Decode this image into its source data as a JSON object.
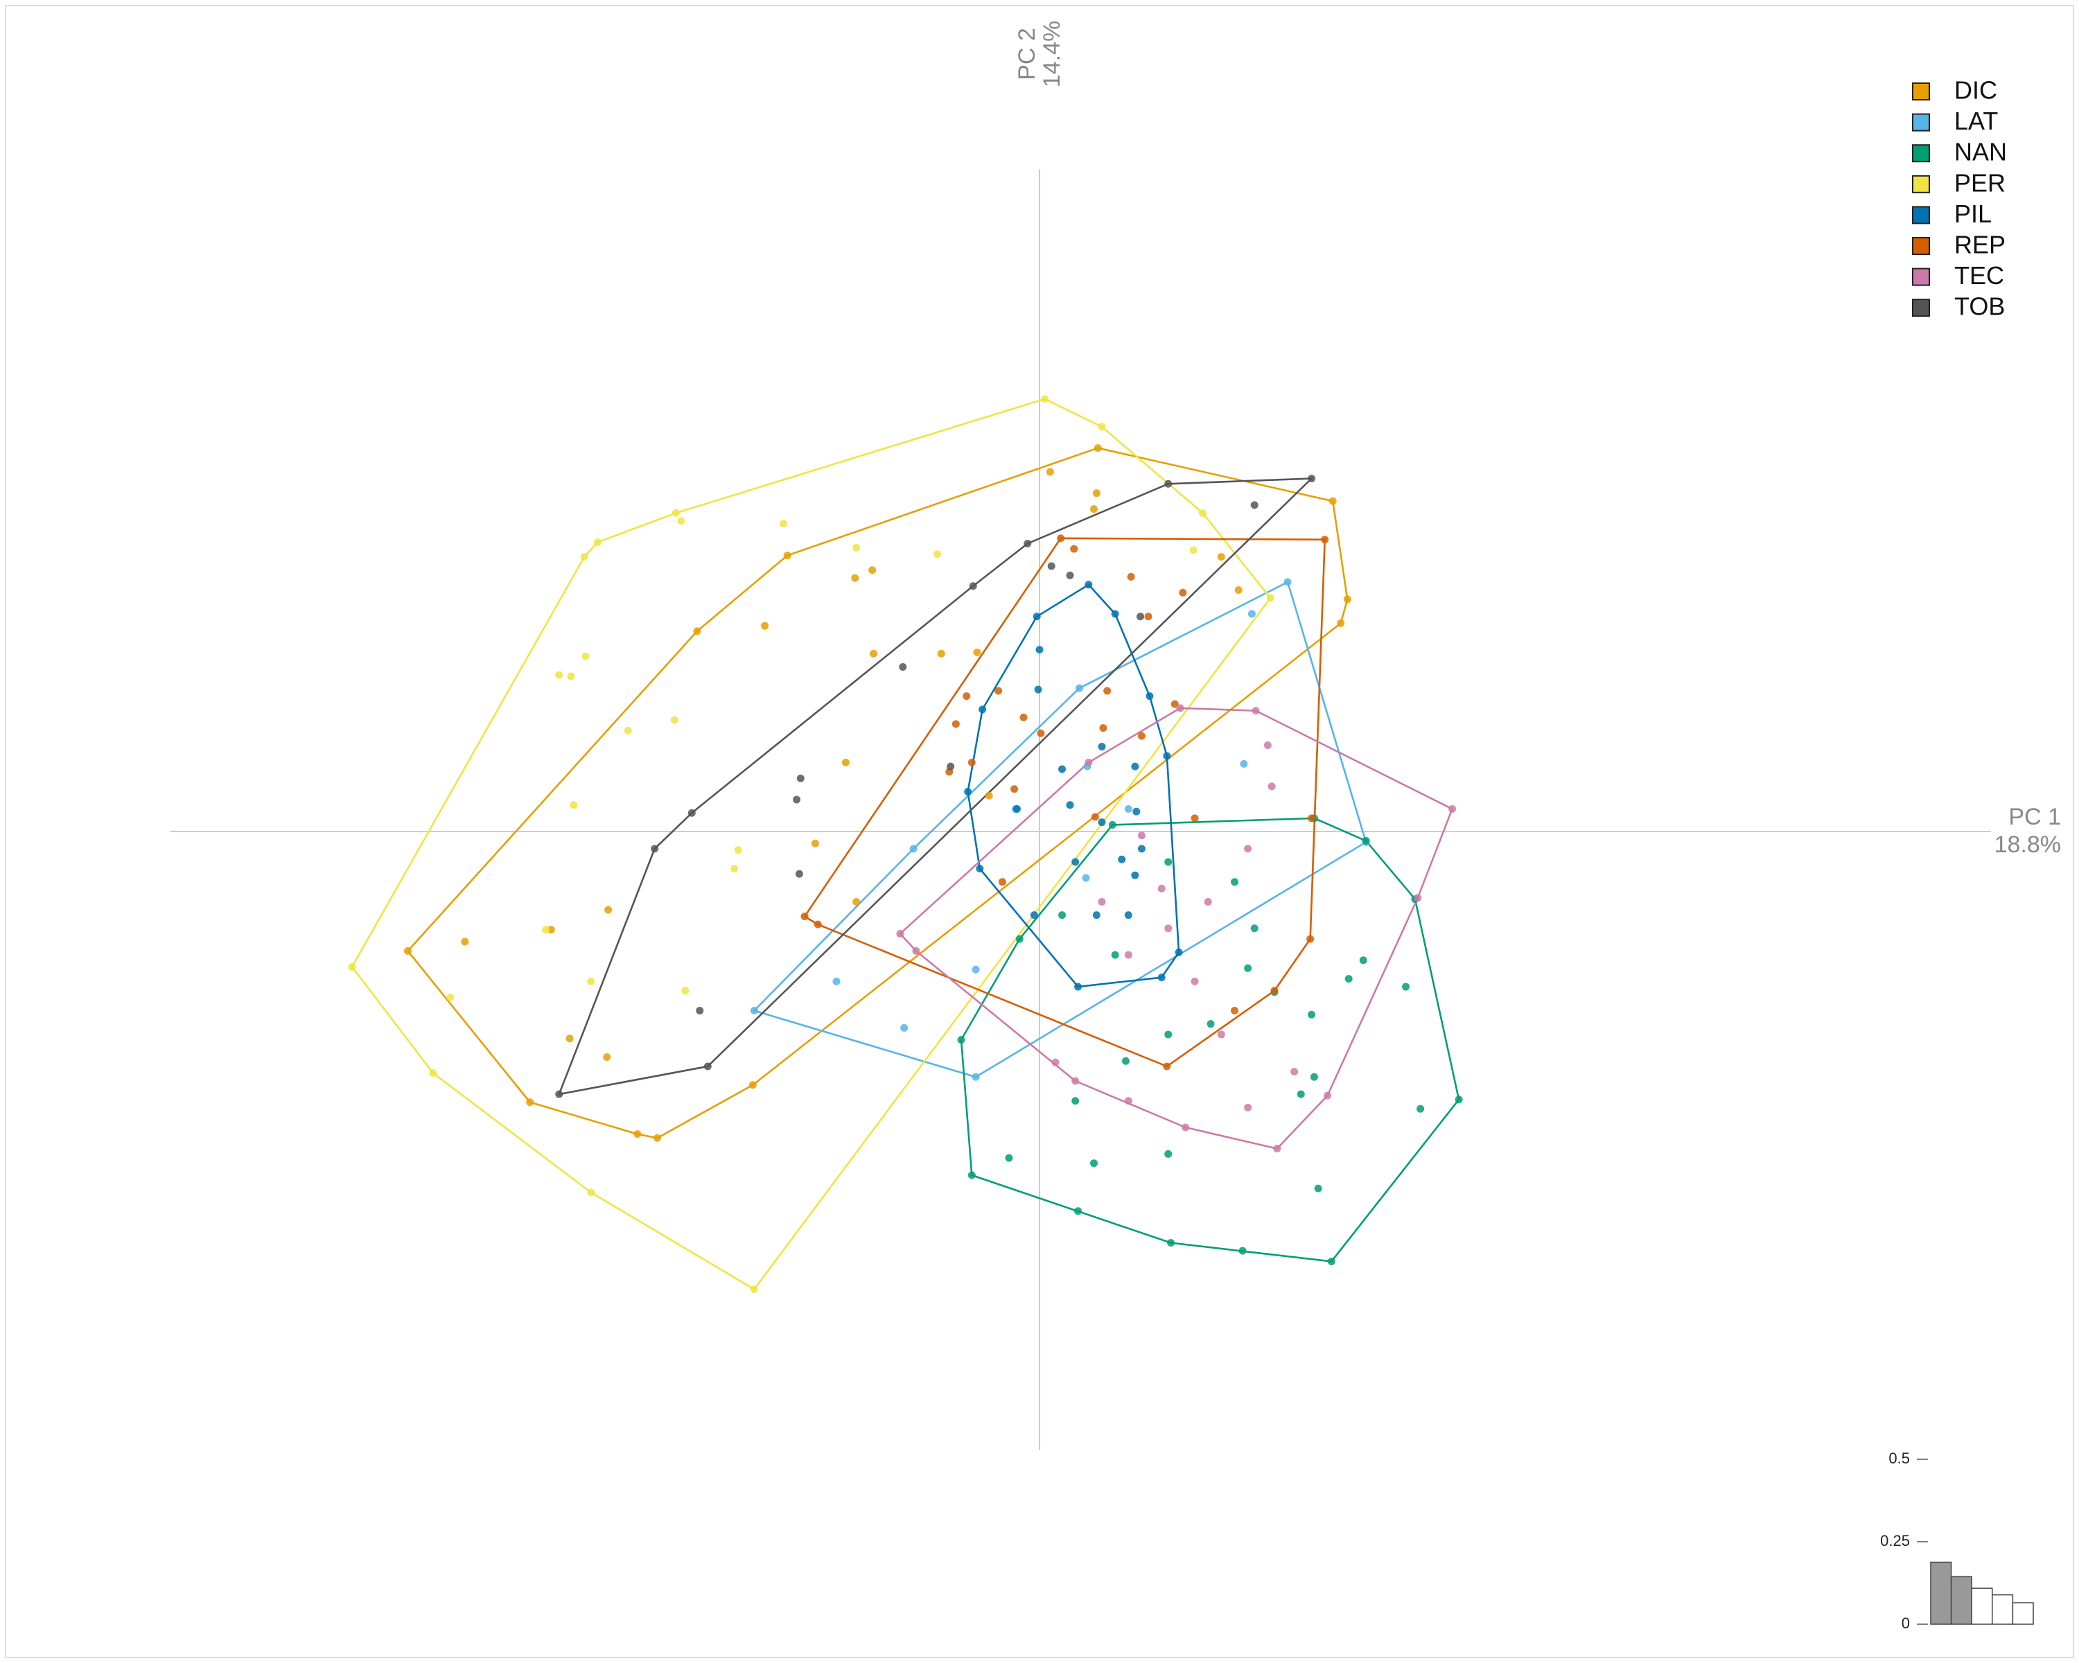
{
  "chart_data": [
    {
      "type": "scatter",
      "xlabel": "PC 1",
      "xlabel_pct": "18.8%",
      "ylabel": "PC 2",
      "ylabel_pct": "14.4%",
      "xlim": [
        -6.55,
        7.17
      ],
      "ylim": [
        -4.66,
        4.99
      ],
      "legend": "top-right",
      "hulls": true,
      "series": [
        {
          "name": "DIC",
          "color": "#e69f00",
          "x": [
            0.08,
            2.21,
            2.32,
            2.27,
            -2.16,
            -3.03,
            -3.84,
            -4.76,
            -2.58,
            -1.9,
            0.44,
            0.43,
            0.41,
            -1.26,
            -1.39,
            -2.07,
            -1.25,
            -0.74,
            -0.47,
            -1.46,
            -1.69,
            -1.38,
            -3.25,
            -3.68,
            -4.33,
            -3.54,
            -3.26,
            -2.88,
            1.5,
            1.37,
            -0.38
          ],
          "y": [
            2.71,
            2.49,
            1.75,
            1.57,
            -1.91,
            -2.28,
            -2.04,
            -0.9,
            1.51,
            2.08,
            2.89,
            2.55,
            2.43,
            1.97,
            1.91,
            1.55,
            1.34,
            1.34,
            1.35,
            0.52,
            -0.09,
            -0.53,
            -0.59,
            -0.74,
            -0.83,
            -1.56,
            -1.7,
            -2.31,
            1.82,
            2.07,
            0.27
          ]
        },
        {
          "name": "LAT",
          "color": "#56b4e9",
          "x": [
            1.87,
            2.46,
            -0.48,
            -2.15,
            0.3,
            1.6,
            1.54,
            -0.95,
            -1.53,
            -1.02,
            -0.48,
            0.36,
            0.35,
            -0.18,
            0.67
          ],
          "y": [
            1.88,
            -0.08,
            -1.85,
            -1.35,
            1.08,
            1.64,
            0.51,
            -0.13,
            -1.13,
            -1.48,
            -1.04,
            0.49,
            -0.35,
            0.17,
            0.17
          ]
        },
        {
          "name": "NAN",
          "color": "#009e73",
          "x": [
            0.55,
            2.07,
            2.46,
            2.83,
            3.16,
            2.2,
            1.53,
            0.99,
            0.29,
            -0.51,
            -0.59,
            -0.15,
            1.47,
            1.62,
            2.44,
            2.76,
            2.33,
            2.05,
            2.07,
            1.97,
            2.87,
            2.1,
            1.77,
            1.29,
            0.97,
            0.65,
            0.97,
            0.41,
            -0.23,
            0.57,
            0.97,
            0.17,
            0.27,
            1.57
          ],
          "y": [
            0.05,
            0.1,
            -0.07,
            -0.51,
            -2.02,
            -3.24,
            -3.16,
            -3.1,
            -2.86,
            -2.59,
            -1.57,
            -0.81,
            -0.38,
            -0.73,
            -0.97,
            -1.17,
            -1.11,
            -1.38,
            -1.85,
            -1.98,
            -2.09,
            -2.69,
            -1.21,
            -1.45,
            -1.53,
            -1.73,
            -2.43,
            -2.5,
            -2.46,
            -0.93,
            -0.23,
            -0.63,
            -2.03,
            -1.03
          ]
        },
        {
          "name": "PER",
          "color": "#f0e442",
          "x": [
            0.04,
            0.47,
            1.74,
            -2.15,
            -3.38,
            -4.57,
            -5.18,
            -3.43,
            -3.33,
            -2.74,
            -1.93,
            -2.7,
            -3.42,
            -3.62,
            -3.53,
            -2.75,
            -3.1,
            -3.51,
            -2.27,
            -2.3,
            -3.72,
            -3.38,
            -2.67,
            -4.44,
            1.23,
            1.16,
            -1.38,
            -0.77
          ],
          "y": [
            3.26,
            3.05,
            1.76,
            -3.45,
            -2.72,
            -1.82,
            -1.02,
            2.07,
            2.18,
            2.4,
            2.32,
            2.34,
            1.32,
            1.18,
            1.17,
            0.84,
            0.76,
            0.2,
            -0.14,
            -0.28,
            -0.74,
            -1.13,
            -1.2,
            -1.25,
            2.4,
            2.12,
            2.14,
            2.09
          ]
        },
        {
          "name": "PIL",
          "color": "#0072b2",
          "x": [
            0.37,
            0.57,
            0.83,
            0.96,
            1.05,
            0.92,
            0.29,
            -0.04,
            -0.45,
            -0.54,
            -0.43,
            -0.02,
            0.0,
            -0.01,
            0.47,
            0.72,
            0.23,
            0.47,
            0.62,
            0.72,
            0.43,
            0.67,
            0.27,
            0.17,
            -0.17,
            0.73,
            0.77
          ],
          "y": [
            1.86,
            1.64,
            1.02,
            0.57,
            -0.91,
            -1.1,
            -1.17,
            -0.63,
            -0.28,
            0.3,
            0.92,
            1.62,
            1.37,
            1.07,
            0.64,
            0.49,
            0.2,
            0.07,
            -0.21,
            -0.33,
            -0.63,
            -0.63,
            -0.23,
            0.47,
            0.17,
            0.15,
            -0.13
          ]
        },
        {
          "name": "REP",
          "color": "#d55e00",
          "x": [
            0.16,
            2.15,
            2.05,
            2.04,
            0.96,
            -1.77,
            -0.63,
            0.26,
            0.69,
            1.08,
            0.82,
            -0.55,
            -0.31,
            -0.12,
            0.01,
            0.48,
            0.51,
            0.77,
            1.02,
            -0.51,
            -0.68,
            -0.19,
            0.42,
            -0.28,
            1.17,
            1.77,
            1.47,
            -1.67
          ],
          "y": [
            2.21,
            2.2,
            0.1,
            -0.81,
            -1.77,
            -0.64,
            0.81,
            2.13,
            1.92,
            1.8,
            1.62,
            1.02,
            1.06,
            0.86,
            0.74,
            0.78,
            1.06,
            0.72,
            0.96,
            0.52,
            0.45,
            0.32,
            0.11,
            -0.38,
            0.1,
            -1.2,
            -1.35,
            -0.7
          ]
        },
        {
          "name": "TEC",
          "color": "#cc79a7",
          "x": [
            1.06,
            3.11,
            2.85,
            2.17,
            1.79,
            1.1,
            0.12,
            -1.05,
            1.63,
            1.72,
            1.75,
            1.57,
            1.27,
            0.97,
            0.67,
            0.47,
            1.17,
            1.37,
            1.57,
            0.67,
            0.27,
            0.37,
            0.77,
            0.92,
            1.92,
            -0.93
          ],
          "y": [
            0.93,
            0.17,
            -0.5,
            -1.99,
            -2.39,
            -2.23,
            -1.74,
            -0.77,
            0.91,
            0.65,
            0.34,
            -0.13,
            -0.53,
            -0.73,
            -0.93,
            -0.53,
            -1.13,
            -1.53,
            -2.08,
            -2.03,
            -1.88,
            0.52,
            -0.03,
            -0.43,
            -1.81,
            -0.9
          ]
        },
        {
          "name": "TOB",
          "color": "#555555",
          "x": [
            2.05,
            0.97,
            -0.09,
            -0.5,
            -2.9,
            -3.62,
            -2.5,
            0.09,
            0.23,
            -1.03,
            -1.8,
            -1.83,
            -2.62,
            -1.81,
            -2.56,
            0.76,
            1.62,
            -0.67
          ],
          "y": [
            2.66,
            2.62,
            2.17,
            1.85,
            -0.13,
            -1.98,
            -1.77,
            2.0,
            1.93,
            1.24,
            0.4,
            0.24,
            0.14,
            -0.32,
            -1.35,
            1.62,
            2.46,
            0.49
          ]
        }
      ]
    },
    {
      "type": "bar",
      "categories": [
        null,
        null,
        null,
        null,
        null
      ],
      "values": [
        0.188,
        0.144,
        0.109,
        0.089,
        0.065
      ],
      "colors": [
        "#999999",
        "#999999",
        "#ffffff",
        "#ffffff",
        "#ffffff"
      ],
      "ylim": [
        0,
        0.5
      ],
      "yticks": [
        0,
        0.25,
        0.5
      ]
    }
  ]
}
